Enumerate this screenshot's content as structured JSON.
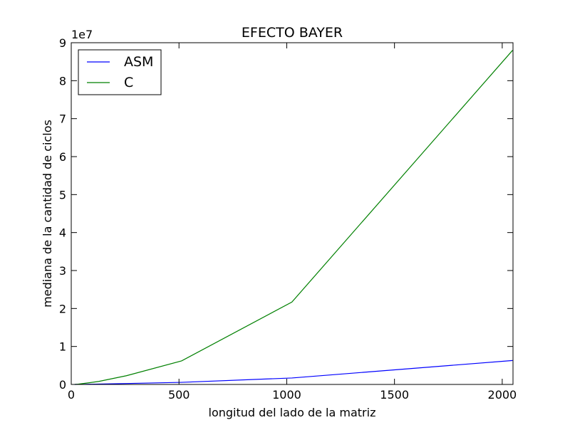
{
  "chart_data": {
    "type": "line",
    "title": "EFECTO BAYER",
    "xlabel": "longitud del lado de la matriz",
    "ylabel": "mediana de la cantidad de ciclos",
    "xlim": [
      0,
      2050
    ],
    "ylim": [
      0,
      90000000
    ],
    "x_ticks": [
      0,
      500,
      1000,
      1500,
      2000
    ],
    "x_tick_labels": [
      "0",
      "500",
      "1000",
      "1500",
      "2000"
    ],
    "y_ticks": [
      0,
      10000000,
      20000000,
      30000000,
      40000000,
      50000000,
      60000000,
      70000000,
      80000000,
      90000000
    ],
    "y_tick_labels": [
      "0",
      "1",
      "2",
      "3",
      "4",
      "5",
      "6",
      "7",
      "8",
      "9"
    ],
    "y_offset_text": "1e7",
    "grid": false,
    "legend_position": "top-left",
    "series": [
      {
        "name": "ASM",
        "color": "#0000ff",
        "x": [
          16,
          32,
          64,
          128,
          256,
          512,
          1024,
          2048
        ],
        "y": [
          0,
          10000,
          40000,
          100000,
          250000,
          550000,
          1700000,
          6300000
        ]
      },
      {
        "name": "C",
        "color": "#008000",
        "x": [
          16,
          32,
          64,
          128,
          256,
          512,
          1024,
          2048
        ],
        "y": [
          0,
          80000,
          300000,
          800000,
          2300000,
          6200000,
          21700000,
          88000000
        ]
      }
    ]
  }
}
